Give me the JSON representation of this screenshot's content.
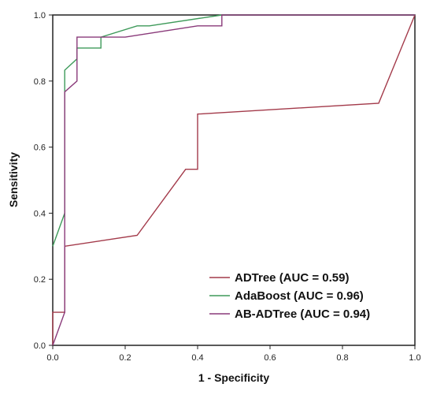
{
  "chart_data": {
    "type": "line",
    "title": "",
    "xlabel": "1 - Specificity",
    "ylabel": "Sensitivity",
    "xlim": [
      0,
      1
    ],
    "ylim": [
      0,
      1
    ],
    "x_ticks": [
      "0.0",
      "0.2",
      "0.4",
      "0.6",
      "0.8",
      "1.0"
    ],
    "y_ticks": [
      "0.0",
      "0.2",
      "0.4",
      "0.6",
      "0.8",
      "1.0"
    ],
    "grid": false,
    "legend_position": "bottom-right",
    "series": [
      {
        "name": "ADTree (AUC = 0.59)",
        "color": "#a33a4a",
        "points": [
          [
            0.0,
            0.0
          ],
          [
            0.0,
            0.1
          ],
          [
            0.033,
            0.1
          ],
          [
            0.033,
            0.3
          ],
          [
            0.233,
            0.333
          ],
          [
            0.367,
            0.533
          ],
          [
            0.4,
            0.533
          ],
          [
            0.4,
            0.7
          ],
          [
            0.9,
            0.733
          ],
          [
            1.0,
            1.0
          ]
        ]
      },
      {
        "name": "AdaBoost (AUC = 0.96)",
        "color": "#3e9a5a",
        "points": [
          [
            0.0,
            0.3
          ],
          [
            0.033,
            0.4
          ],
          [
            0.033,
            0.833
          ],
          [
            0.067,
            0.867
          ],
          [
            0.067,
            0.9
          ],
          [
            0.133,
            0.9
          ],
          [
            0.133,
            0.933
          ],
          [
            0.233,
            0.967
          ],
          [
            0.267,
            0.967
          ],
          [
            0.467,
            1.0
          ],
          [
            1.0,
            1.0
          ]
        ]
      },
      {
        "name": "AB-ADTree (AUC = 0.94)",
        "color": "#8a3a7a",
        "points": [
          [
            0.0,
            0.0
          ],
          [
            0.033,
            0.1
          ],
          [
            0.033,
            0.767
          ],
          [
            0.067,
            0.8
          ],
          [
            0.067,
            0.933
          ],
          [
            0.2,
            0.933
          ],
          [
            0.4,
            0.967
          ],
          [
            0.467,
            0.967
          ],
          [
            0.467,
            1.0
          ],
          [
            1.0,
            1.0
          ]
        ]
      }
    ]
  }
}
